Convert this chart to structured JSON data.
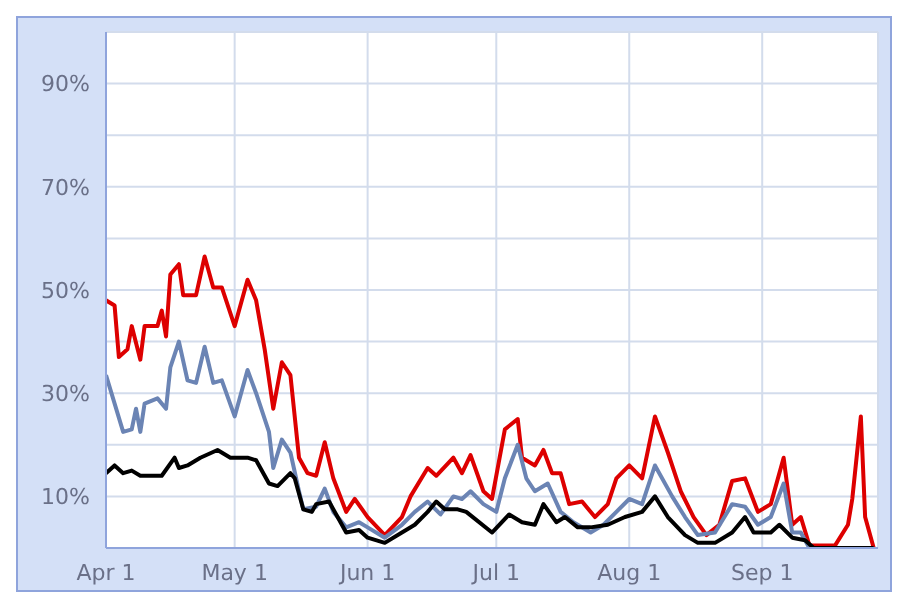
{
  "chart_data": {
    "type": "line",
    "xlim": [
      "--04-01",
      "--09-28"
    ],
    "xticks": [
      {
        "value": "--04-01",
        "label": "Apr 1"
      },
      {
        "value": "--05-01",
        "label": "May 1"
      },
      {
        "value": "--06-01",
        "label": "Jun 1"
      },
      {
        "value": "--07-01",
        "label": "Jul 1"
      },
      {
        "value": "--08-01",
        "label": "Aug 1"
      },
      {
        "value": "--09-01",
        "label": "Sep 1"
      }
    ],
    "ylim": [
      0,
      100
    ],
    "yticks": [
      {
        "value": 10,
        "label": "10%"
      },
      {
        "value": 20,
        "label": null
      },
      {
        "value": 30,
        "label": "30%"
      },
      {
        "value": 40,
        "label": null
      },
      {
        "value": 50,
        "label": "50%"
      },
      {
        "value": 60,
        "label": null
      },
      {
        "value": 70,
        "label": "70%"
      },
      {
        "value": 80,
        "label": null
      },
      {
        "value": 90,
        "label": "90%"
      }
    ],
    "grid": true,
    "legend": false,
    "marker": "none",
    "line_style": "solid",
    "series": [
      {
        "color": "#dd0000",
        "x": [
          "--04-01",
          "--04-03",
          "--04-04",
          "--04-06",
          "--04-07",
          "--04-09",
          "--04-10",
          "--04-13",
          "--04-14",
          "--04-15",
          "--04-16",
          "--04-18",
          "--04-19",
          "--04-22",
          "--04-24",
          "--04-26",
          "--04-28",
          "--05-01",
          "--05-04",
          "--05-06",
          "--05-08",
          "--05-10",
          "--05-12",
          "--05-14",
          "--05-16",
          "--05-18",
          "--05-20",
          "--05-22",
          "--05-24",
          "--05-27",
          "--05-29",
          "--06-01",
          "--06-05",
          "--06-09",
          "--06-11",
          "--06-15",
          "--06-17",
          "--06-21",
          "--06-23",
          "--06-25",
          "--06-28",
          "--06-30",
          "--07-03",
          "--07-06",
          "--07-07",
          "--07-10",
          "--07-12",
          "--07-14",
          "--07-16",
          "--07-18",
          "--07-21",
          "--07-24",
          "--07-27",
          "--07-29",
          "--08-01",
          "--08-04",
          "--08-07",
          "--08-10",
          "--08-13",
          "--08-16",
          "--08-19",
          "--08-22",
          "--08-25",
          "--08-28",
          "--08-31",
          "--09-03",
          "--09-06",
          "--09-08",
          "--09-10",
          "--09-12",
          "--09-18",
          "--09-21",
          "--09-22",
          "--09-24",
          "--09-25",
          "--09-27"
        ],
        "values": [
          48,
          47,
          37,
          38.5,
          43,
          36.5,
          43,
          43,
          46,
          41,
          53,
          55,
          49,
          49,
          56.5,
          50.5,
          50.5,
          43,
          52,
          48,
          38.5,
          27,
          36,
          33.5,
          17.5,
          14.5,
          14,
          20.5,
          13.5,
          7,
          9.5,
          6,
          2.5,
          6,
          10,
          15.5,
          14,
          17.5,
          14.5,
          18,
          11,
          9.5,
          23,
          25,
          17.5,
          16,
          19,
          14.5,
          14.5,
          8.5,
          9,
          6,
          8.5,
          13.5,
          16,
          13.5,
          25.5,
          18.5,
          11,
          6,
          2.5,
          4.5,
          13,
          13.5,
          7,
          8.5,
          17.5,
          4.5,
          6,
          0.5,
          0.5,
          4.5,
          9.5,
          25.5,
          6,
          0
        ]
      },
      {
        "color": "#6b84b4",
        "x": [
          "--04-01",
          "--04-05",
          "--04-07",
          "--04-08",
          "--04-09",
          "--04-10",
          "--04-13",
          "--04-15",
          "--04-16",
          "--04-18",
          "--04-20",
          "--04-22",
          "--04-24",
          "--04-26",
          "--04-28",
          "--05-01",
          "--05-04",
          "--05-06",
          "--05-09",
          "--05-10",
          "--05-12",
          "--05-14",
          "--05-16",
          "--05-17",
          "--05-20",
          "--05-22",
          "--05-24",
          "--05-27",
          "--05-30",
          "--06-01",
          "--06-05",
          "--06-09",
          "--06-12",
          "--06-15",
          "--06-18",
          "--06-21",
          "--06-23",
          "--06-25",
          "--06-28",
          "--07-01",
          "--07-03",
          "--07-06",
          "--07-08",
          "--07-10",
          "--07-13",
          "--07-16",
          "--07-19",
          "--07-23",
          "--07-26",
          "--07-29",
          "--08-01",
          "--08-04",
          "--08-07",
          "--08-11",
          "--08-14",
          "--08-17",
          "--08-21",
          "--08-25",
          "--08-28",
          "--08-31",
          "--09-03",
          "--09-06",
          "--09-08",
          "--09-10",
          "--09-12",
          "--09-27"
        ],
        "values": [
          33.5,
          22.5,
          23,
          27,
          22.5,
          28,
          29,
          27,
          35,
          40,
          32.5,
          32,
          39,
          32,
          32.5,
          25.5,
          34.5,
          30,
          22.5,
          15.5,
          21,
          18.5,
          11,
          7.5,
          8,
          11.5,
          7,
          4,
          5,
          4,
          2,
          4.5,
          7,
          9,
          6.5,
          10,
          9.5,
          11,
          8.5,
          7,
          13.5,
          20,
          13.5,
          11,
          12.5,
          7,
          5,
          3,
          4.5,
          7,
          9.5,
          8.5,
          16,
          10,
          6,
          2.5,
          3,
          8.5,
          8,
          4.5,
          6,
          12.5,
          3,
          3,
          0,
          0
        ]
      },
      {
        "color": "#000000",
        "x": [
          "--04-01",
          "--04-03",
          "--04-05",
          "--04-07",
          "--04-09",
          "--04-14",
          "--04-17",
          "--04-18",
          "--04-20",
          "--04-23",
          "--04-27",
          "--04-30",
          "--05-04",
          "--05-06",
          "--05-09",
          "--05-11",
          "--05-14",
          "--05-15",
          "--05-17",
          "--05-19",
          "--05-20",
          "--05-23",
          "--05-25",
          "--05-27",
          "--05-30",
          "--06-01",
          "--06-05",
          "--06-09",
          "--06-12",
          "--06-15",
          "--06-17",
          "--06-19",
          "--06-22",
          "--06-24",
          "--06-30",
          "--07-04",
          "--07-07",
          "--07-10",
          "--07-12",
          "--07-15",
          "--07-17",
          "--07-20",
          "--07-23",
          "--07-27",
          "--07-31",
          "--08-04",
          "--08-07",
          "--08-10",
          "--08-14",
          "--08-17",
          "--08-21",
          "--08-25",
          "--08-28",
          "--08-30",
          "--09-03",
          "--09-05",
          "--09-08",
          "--09-11",
          "--09-13",
          "--09-27"
        ],
        "values": [
          14.5,
          16,
          14.5,
          15,
          14,
          14,
          17.5,
          15.5,
          16,
          17.5,
          19,
          17.5,
          17.5,
          17,
          12.5,
          12,
          14.5,
          13.5,
          7.5,
          7,
          8.5,
          9,
          6,
          3,
          3.5,
          2,
          1,
          3,
          4.5,
          7,
          9,
          7.5,
          7.5,
          7,
          3,
          6.5,
          5,
          4.5,
          8.5,
          5,
          6,
          4,
          4,
          4.5,
          6,
          7,
          10,
          6,
          2.5,
          1,
          1,
          3,
          6,
          3,
          3,
          4.5,
          2,
          1.5,
          0,
          0
        ]
      }
    ]
  }
}
